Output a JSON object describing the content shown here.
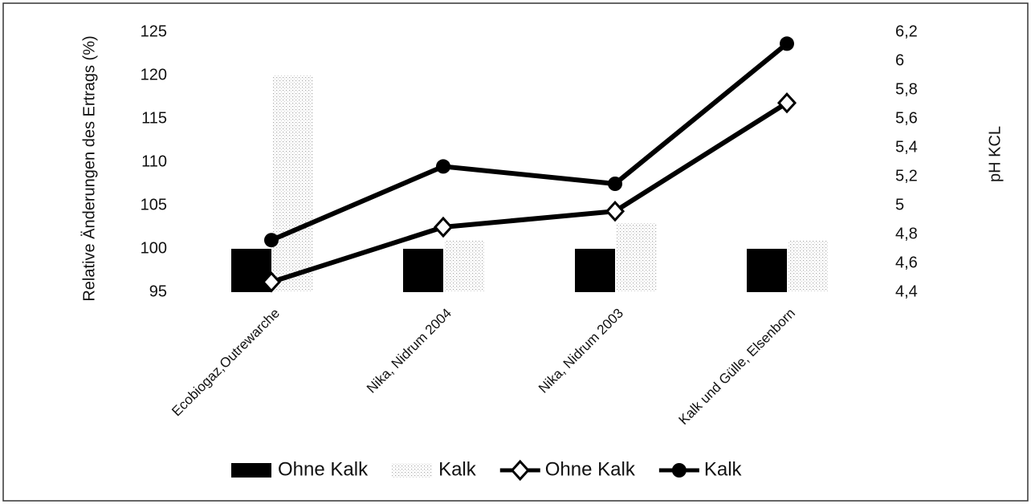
{
  "chart_data": {
    "type": "bar",
    "categories": [
      "Ecobiogaz,Outrewarche",
      "Nika, Nidrum 2004",
      "Nika, Nidrum 2003",
      "Kalk und Gülle, Elsenborn"
    ],
    "ylabel": "Relative Änderungen des Ertrags (%)",
    "y2label": "pH KCL",
    "ylim": [
      95,
      125
    ],
    "yticks": [
      95,
      100,
      105,
      110,
      115,
      120,
      125
    ],
    "y2lim": [
      4.4,
      6.2
    ],
    "y2ticks": [
      {
        "value": 4.4,
        "label": "4,4"
      },
      {
        "value": 4.6,
        "label": "4,6"
      },
      {
        "value": 4.8,
        "label": "4,8"
      },
      5,
      {
        "value": 5.2,
        "label": "5,2"
      },
      {
        "value": 5.4,
        "label": "5,4"
      },
      {
        "value": 5.6,
        "label": "5,6"
      },
      {
        "value": 5.8,
        "label": "5,8"
      },
      6,
      {
        "value": 6.2,
        "label": "6,2"
      }
    ],
    "series": [
      {
        "name": "Ohne Kalk",
        "type": "bar",
        "color": "#000000",
        "values": [
          100,
          100,
          100,
          100
        ]
      },
      {
        "name": "Kalk",
        "type": "bar",
        "color": "#d8d8d8",
        "values": [
          120,
          101,
          103,
          101
        ]
      },
      {
        "name": "Ohne Kalk",
        "type": "line",
        "marker": "diamond",
        "axis": "y2",
        "color": "#000000",
        "values": [
          4.47,
          4.85,
          4.96,
          5.71
        ]
      },
      {
        "name": "Kalk",
        "type": "line",
        "marker": "circle",
        "axis": "y2",
        "color": "#000000",
        "values": [
          4.76,
          5.27,
          5.15,
          6.12
        ]
      }
    ]
  }
}
